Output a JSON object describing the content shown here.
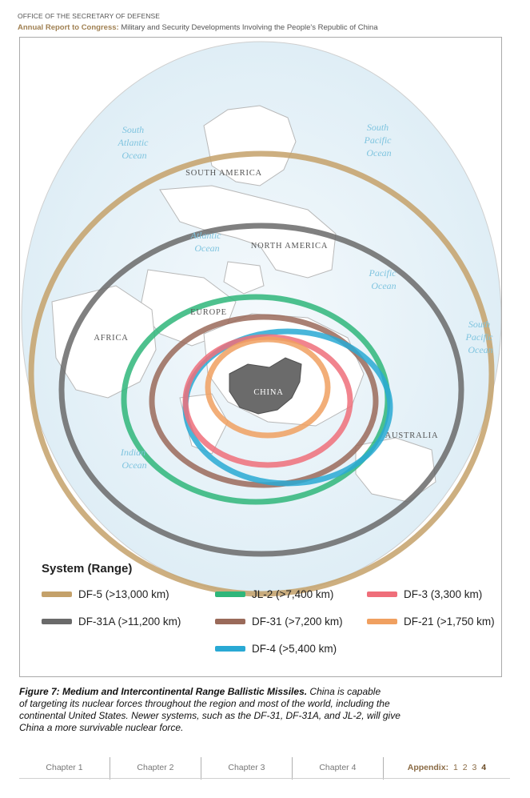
{
  "header": {
    "office": "OFFICE OF THE SECRETARY OF DEFENSE",
    "report_prefix": "Annual Report to Congress:",
    "report_title": "Military and Security Developments Involving the People's Republic of China"
  },
  "map": {
    "labels": {
      "south_atlantic": [
        "South",
        "Atlantic",
        "Ocean"
      ],
      "south_pacific_top": [
        "South",
        "Pacific",
        "Ocean"
      ],
      "south_america": "SOUTH AMERICA",
      "atlantic": [
        "Atlantic",
        "Ocean"
      ],
      "north_america": "NORTH AMERICA",
      "pacific": [
        "Pacific",
        "Ocean"
      ],
      "south_pacific_right": [
        "South",
        "Pacific",
        "Ocean"
      ],
      "europe": "EUROPE",
      "africa": "AFRICA",
      "china": "CHINA",
      "australia": "AUSTRALIA",
      "indian": [
        "Indian",
        "Ocean"
      ]
    },
    "colors": {
      "ocean": "#e4f1f8",
      "ocean_label": "#7fc4df",
      "land_outline": "#b8b8b8",
      "china_fill": "#6b6b6b"
    }
  },
  "legend": {
    "title": "System (Range)",
    "items": [
      {
        "label": "DF-5 (>13,000 km)",
        "color": "#c4a16a"
      },
      {
        "label": "JL-2 (>7,400 km)",
        "color": "#2fb67a"
      },
      {
        "label": "DF-3 (3,300 km)",
        "color": "#ef6e7a"
      },
      {
        "label": "DF-31A (>11,200 km)",
        "color": "#6a6a6a"
      },
      {
        "label": "DF-31 (>7,200 km)",
        "color": "#9a6a5a"
      },
      {
        "label": "DF-21 (>1,750 km)",
        "color": "#f0a060"
      },
      {
        "label": "DF-4 (>5,400 km)",
        "color": "#29a9d4"
      }
    ]
  },
  "caption": {
    "title": "Figure 7: Medium and Intercontinental Range Ballistic Missiles.",
    "line1": "China is capable",
    "line2": "of targeting its nuclear forces throughout the region and most of the world, including the",
    "line3": "continental United States. Newer systems, such as the DF-31, DF-31A, and JL-2, will give",
    "line4": "China a more survivable nuclear force."
  },
  "footer": {
    "tabs": [
      "Chapter 1",
      "Chapter 2",
      "Chapter 3",
      "Chapter 4"
    ],
    "appendix_label": "Appendix:",
    "pages": [
      "1",
      "2",
      "3",
      "4"
    ],
    "current_page": "4"
  }
}
